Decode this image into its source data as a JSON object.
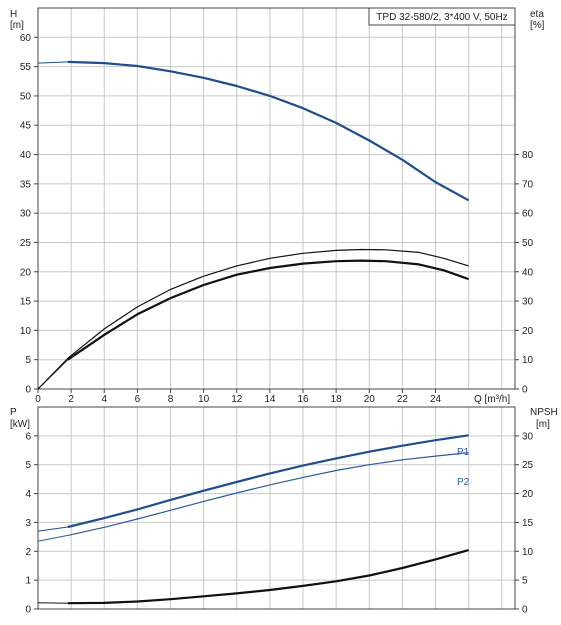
{
  "chart_data": [
    {
      "type": "line",
      "legend": "TPD 32-580/2, 3*400 V, 50Hz",
      "grid": true,
      "xlabel": "Q [m³/h]",
      "x_ticks": [
        "0",
        "2",
        "4",
        "6",
        "8",
        "10",
        "12",
        "14",
        "16",
        "18",
        "20",
        "22",
        "24"
      ],
      "xlim": [
        0,
        28.8
      ],
      "left_axis": {
        "label": "H",
        "unit": "[m]",
        "ylim": [
          0,
          65
        ],
        "ticks": [
          "0",
          "5",
          "10",
          "15",
          "20",
          "25",
          "30",
          "35",
          "40",
          "45",
          "50",
          "55",
          "60"
        ]
      },
      "right_axis": {
        "label": "eta",
        "unit": "[%]",
        "ylim": [
          0,
          130
        ],
        "ticks": [
          "0",
          "10",
          "20",
          "30",
          "40",
          "50",
          "60",
          "70",
          "80"
        ]
      },
      "series": [
        {
          "axis": "left",
          "color": "#1f4e8c",
          "points": [
            [
              0,
              55.6
            ],
            [
              1.8,
              55.8
            ],
            [
              4,
              55.6
            ],
            [
              6,
              55.1
            ],
            [
              8,
              54.2
            ],
            [
              10,
              53.1
            ],
            [
              12,
              51.7
            ],
            [
              14,
              50.0
            ],
            [
              16,
              47.9
            ],
            [
              18,
              45.4
            ],
            [
              20,
              42.4
            ],
            [
              22,
              39.1
            ],
            [
              24,
              35.3
            ],
            [
              26,
              32.2
            ]
          ]
        },
        {
          "axis": "right",
          "color": "#111111",
          "points": [
            [
              0,
              0
            ],
            [
              1.8,
              10
            ],
            [
              4,
              18.5
            ],
            [
              6,
              25.5
            ],
            [
              8,
              31
            ],
            [
              10,
              35.5
            ],
            [
              12,
              39
            ],
            [
              14,
              41.3
            ],
            [
              16,
              42.8
            ],
            [
              18,
              43.6
            ],
            [
              19.5,
              43.8
            ],
            [
              21,
              43.6
            ],
            [
              23,
              42.5
            ],
            [
              24.5,
              40.5
            ],
            [
              26,
              37.5
            ]
          ]
        },
        {
          "axis": "right",
          "color": "#111111",
          "points": [
            [
              0,
              0
            ],
            [
              1.8,
              10.5
            ],
            [
              4,
              20.5
            ],
            [
              6,
              28
            ],
            [
              8,
              34
            ],
            [
              10,
              38.5
            ],
            [
              12,
              42
            ],
            [
              14,
              44.6
            ],
            [
              16,
              46.3
            ],
            [
              18,
              47.3
            ],
            [
              19.5,
              47.6
            ],
            [
              21,
              47.5
            ],
            [
              23,
              46.6
            ],
            [
              24.5,
              44.6
            ],
            [
              26,
              42
            ]
          ]
        }
      ]
    },
    {
      "type": "line",
      "grid": true,
      "x_ticks": [],
      "xlim": [
        0,
        28.8
      ],
      "left_axis": {
        "label": "P",
        "unit": "[kW]",
        "ylim": [
          0,
          7
        ],
        "ticks": [
          "0",
          "1",
          "2",
          "3",
          "4",
          "5",
          "6"
        ]
      },
      "right_axis": {
        "label": "NPSH",
        "unit": "[m]",
        "ylim": [
          0,
          35
        ],
        "ticks": [
          "0",
          "5",
          "10",
          "15",
          "20",
          "25",
          "30"
        ]
      },
      "series": [
        {
          "name": "P1",
          "axis": "left",
          "color": "#1f4e8c",
          "points": [
            [
              0,
              2.7
            ],
            [
              1.8,
              2.84
            ],
            [
              4,
              3.15
            ],
            [
              6,
              3.45
            ],
            [
              8,
              3.78
            ],
            [
              10,
              4.1
            ],
            [
              12,
              4.4
            ],
            [
              14,
              4.7
            ],
            [
              16,
              4.97
            ],
            [
              18,
              5.22
            ],
            [
              20,
              5.45
            ],
            [
              22,
              5.66
            ],
            [
              24,
              5.85
            ],
            [
              26,
              6.02
            ]
          ]
        },
        {
          "name": "P2",
          "axis": "left",
          "color": "#2a5aa0",
          "points": [
            [
              0,
              2.35
            ],
            [
              1.8,
              2.55
            ],
            [
              4,
              2.83
            ],
            [
              6,
              3.12
            ],
            [
              8,
              3.42
            ],
            [
              10,
              3.73
            ],
            [
              12,
              4.02
            ],
            [
              14,
              4.3
            ],
            [
              16,
              4.56
            ],
            [
              18,
              4.8
            ],
            [
              20,
              5.0
            ],
            [
              22,
              5.17
            ],
            [
              24,
              5.3
            ],
            [
              26,
              5.42
            ]
          ]
        },
        {
          "axis": "right",
          "color": "#111111",
          "points": [
            [
              0,
              1.1
            ],
            [
              1.8,
              1.0
            ],
            [
              4,
              1.05
            ],
            [
              6,
              1.3
            ],
            [
              8,
              1.7
            ],
            [
              10,
              2.2
            ],
            [
              12,
              2.7
            ],
            [
              14,
              3.3
            ],
            [
              16,
              4.0
            ],
            [
              18,
              4.8
            ],
            [
              20,
              5.8
            ],
            [
              22,
              7.1
            ],
            [
              24,
              8.6
            ],
            [
              26,
              10.2
            ]
          ]
        }
      ]
    }
  ]
}
